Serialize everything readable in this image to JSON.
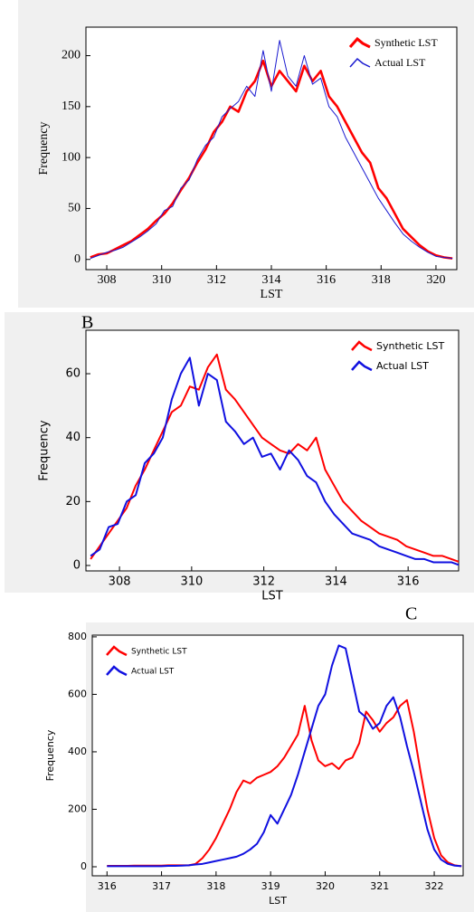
{
  "chart_data": [
    {
      "type": "line",
      "x_label": "LST",
      "y_label": "Frequency",
      "legend": "upper right",
      "grid": false,
      "xlim": [
        307.24,
        320.76
      ],
      "ylim": [
        -10,
        228
      ],
      "xticks": [
        308,
        310,
        312,
        314,
        316,
        318,
        320
      ],
      "yticks": [
        0,
        50,
        100,
        150,
        200
      ],
      "x": [
        307.4,
        307.7,
        308,
        308.3,
        308.6,
        308.9,
        309.2,
        309.5,
        309.8,
        310.1,
        310.4,
        310.7,
        311,
        311.3,
        311.6,
        311.9,
        312.2,
        312.5,
        312.8,
        313.1,
        313.4,
        313.7,
        314,
        314.3,
        314.6,
        314.9,
        315.2,
        315.5,
        315.8,
        316.1,
        316.4,
        316.7,
        317,
        317.3,
        317.6,
        317.9,
        318.2,
        318.5,
        318.8,
        319.1,
        319.4,
        319.7,
        320,
        320.3,
        320.6
      ],
      "series": [
        {
          "name": "Synthetic LST",
          "color": "#ff0000",
          "values": [
            2,
            5,
            6,
            10,
            14,
            18,
            24,
            30,
            38,
            45,
            55,
            68,
            80,
            95,
            108,
            125,
            135,
            150,
            145,
            165,
            175,
            195,
            170,
            185,
            175,
            165,
            190,
            175,
            185,
            160,
            150,
            135,
            120,
            105,
            95,
            70,
            60,
            45,
            30,
            22,
            14,
            8,
            4,
            2,
            1
          ]
        },
        {
          "name": "Actual LST",
          "color": "#1a1ad0",
          "values": [
            1,
            4,
            7,
            9,
            12,
            17,
            22,
            28,
            35,
            48,
            52,
            70,
            78,
            98,
            112,
            120,
            140,
            148,
            155,
            170,
            160,
            205,
            165,
            215,
            180,
            170,
            200,
            172,
            178,
            150,
            140,
            120,
            105,
            90,
            75,
            60,
            48,
            36,
            25,
            18,
            12,
            7,
            3,
            2,
            1
          ]
        }
      ]
    },
    {
      "type": "line",
      "annotation": "B",
      "x_label": "LST",
      "y_label": "Frequency",
      "legend": "upper right",
      "grid": false,
      "xlim": [
        307.07,
        317.4
      ],
      "ylim": [
        -1.7,
        73.6
      ],
      "xticks": [
        308,
        310,
        312,
        314,
        316
      ],
      "yticks": [
        0,
        20,
        40,
        60
      ],
      "x": [
        307.2,
        307.45,
        307.7,
        307.95,
        308.2,
        308.45,
        308.7,
        308.95,
        309.2,
        309.45,
        309.7,
        309.95,
        310.2,
        310.45,
        310.7,
        310.95,
        311.2,
        311.45,
        311.7,
        311.95,
        312.2,
        312.45,
        312.7,
        312.95,
        313.2,
        313.45,
        313.7,
        313.95,
        314.2,
        314.45,
        314.7,
        314.95,
        315.2,
        315.45,
        315.7,
        315.95,
        316.2,
        316.45,
        316.7,
        316.95,
        317.2,
        317.45,
        317.7
      ],
      "series": [
        {
          "name": "Synthetic LST",
          "color": "#ff0000",
          "values": [
            2,
            6,
            10,
            14,
            18,
            25,
            30,
            36,
            42,
            48,
            50,
            56,
            55,
            62,
            66,
            55,
            52,
            48,
            44,
            40,
            38,
            36,
            35,
            38,
            36,
            40,
            30,
            25,
            20,
            17,
            14,
            12,
            10,
            9,
            8,
            6,
            5,
            4,
            3,
            3,
            2,
            1,
            1
          ]
        },
        {
          "name": "Actual LST",
          "color": "#1010e0",
          "values": [
            3,
            5,
            12,
            13,
            20,
            22,
            32,
            35,
            40,
            52,
            60,
            65,
            50,
            60,
            58,
            45,
            42,
            38,
            40,
            34,
            35,
            30,
            36,
            33,
            28,
            26,
            20,
            16,
            13,
            10,
            9,
            8,
            6,
            5,
            4,
            3,
            2,
            2,
            1,
            1,
            1,
            0,
            0
          ]
        }
      ]
    },
    {
      "type": "line",
      "annotation": "C",
      "x_label": "LST",
      "y_label": "Frequency",
      "legend": "upper left",
      "grid": false,
      "xlim": [
        315.73,
        322.53
      ],
      "ylim": [
        -31.5,
        806
      ],
      "xticks": [
        316,
        317,
        318,
        319,
        320,
        321,
        322
      ],
      "yticks": [
        0,
        200,
        400,
        600,
        800
      ],
      "x": [
        316,
        316.125,
        316.25,
        316.375,
        316.5,
        316.625,
        316.75,
        316.875,
        317,
        317.125,
        317.25,
        317.375,
        317.5,
        317.625,
        317.75,
        317.875,
        318,
        318.125,
        318.25,
        318.375,
        318.5,
        318.625,
        318.75,
        318.875,
        319,
        319.125,
        319.25,
        319.375,
        319.5,
        319.625,
        319.75,
        319.875,
        320,
        320.125,
        320.25,
        320.375,
        320.5,
        320.625,
        320.75,
        320.875,
        321,
        321.125,
        321.25,
        321.375,
        321.5,
        321.625,
        321.75,
        321.875,
        322,
        322.125,
        322.25,
        322.375,
        322.5
      ],
      "series": [
        {
          "name": "Synthetic LST",
          "color": "#ff0000",
          "values": [
            3,
            3,
            3,
            3,
            4,
            4,
            4,
            4,
            4,
            5,
            5,
            5,
            5,
            10,
            30,
            60,
            100,
            150,
            200,
            260,
            300,
            290,
            310,
            320,
            330,
            350,
            380,
            420,
            460,
            560,
            440,
            370,
            350,
            360,
            340,
            370,
            380,
            430,
            540,
            510,
            470,
            500,
            520,
            560,
            580,
            470,
            330,
            200,
            100,
            40,
            15,
            5,
            2
          ]
        },
        {
          "name": "Actual LST",
          "color": "#1010e0",
          "values": [
            2,
            2,
            2,
            2,
            2,
            2,
            2,
            2,
            2,
            3,
            3,
            4,
            5,
            8,
            10,
            15,
            20,
            25,
            30,
            35,
            45,
            60,
            80,
            120,
            180,
            150,
            200,
            250,
            320,
            400,
            480,
            560,
            600,
            700,
            770,
            760,
            650,
            540,
            520,
            480,
            500,
            560,
            590,
            520,
            420,
            330,
            230,
            130,
            60,
            25,
            10,
            4,
            2
          ]
        }
      ]
    }
  ]
}
